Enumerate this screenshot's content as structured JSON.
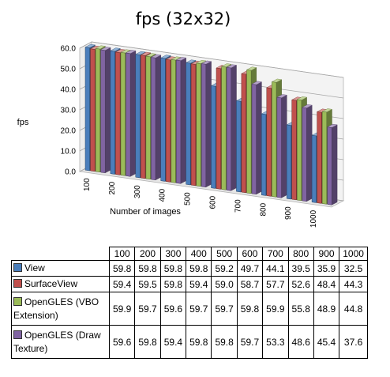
{
  "chart_data": {
    "type": "bar",
    "subtype": "3d-clustered-column",
    "title": "fps (32x32)",
    "xlabel": "Number of images",
    "ylabel": "fps",
    "ylim": [
      0,
      60
    ],
    "yticks": [
      "0.0",
      "10.0",
      "20.0",
      "30.0",
      "40.0",
      "50.0",
      "60.0"
    ],
    "grid": true,
    "legend": "in data table",
    "categories": [
      "100",
      "200",
      "300",
      "400",
      "500",
      "600",
      "700",
      "800",
      "900",
      "1000"
    ],
    "series": [
      {
        "name": "View",
        "color": "#4a7ebb",
        "values": [
          59.8,
          59.8,
          59.8,
          59.8,
          59.2,
          49.7,
          44.1,
          39.5,
          35.9,
          32.5
        ]
      },
      {
        "name": "SurfaceView",
        "color": "#c0504d",
        "values": [
          59.4,
          59.5,
          59.8,
          59.4,
          59.0,
          58.7,
          57.7,
          52.6,
          48.4,
          44.3
        ]
      },
      {
        "name": "OpenGLES (VBO Extension)",
        "color": "#9bbb59",
        "values": [
          59.9,
          59.7,
          59.6,
          59.7,
          59.7,
          59.8,
          59.9,
          55.8,
          48.9,
          44.8
        ]
      },
      {
        "name": "OpenGLES (Draw Texture)",
        "color": "#8064a2",
        "values": [
          59.6,
          59.8,
          59.4,
          59.8,
          59.8,
          59.7,
          53.3,
          48.6,
          45.4,
          37.6
        ]
      }
    ],
    "table": {
      "header": [
        "100",
        "200",
        "300",
        "400",
        "500",
        "600",
        "700",
        "800",
        "900",
        "1000"
      ],
      "rows": [
        {
          "label": "View",
          "cells": [
            "59.8",
            "59.8",
            "59.8",
            "59.8",
            "59.2",
            "49.7",
            "44.1",
            "39.5",
            "35.9",
            "32.5"
          ]
        },
        {
          "label": "SurfaceView",
          "cells": [
            "59.4",
            "59.5",
            "59.8",
            "59.4",
            "59.0",
            "58.7",
            "57.7",
            "52.6",
            "48.4",
            "44.3"
          ]
        },
        {
          "label": "OpenGLES (VBO Extension)",
          "cells": [
            "59.9",
            "59.7",
            "59.6",
            "59.7",
            "59.7",
            "59.8",
            "59.9",
            "55.8",
            "48.9",
            "44.8"
          ]
        },
        {
          "label": "OpenGLES (Draw Texture)",
          "cells": [
            "59.6",
            "59.8",
            "59.4",
            "59.8",
            "59.8",
            "59.7",
            "53.3",
            "48.6",
            "45.4",
            "37.6"
          ]
        }
      ]
    }
  }
}
